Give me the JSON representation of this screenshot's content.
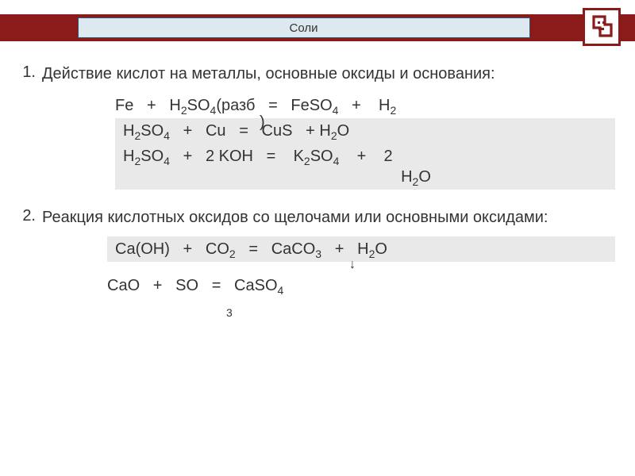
{
  "header": {
    "title": "Соли",
    "bar_color": "#8b1a1a",
    "title_box_bg": "#dde9ef",
    "title_box_border": "#2a5a7a"
  },
  "items": [
    {
      "num": "1.",
      "text": "Действие кислот на металлы, основные оксиды и основания:",
      "equations": [
        {
          "bg": "plain",
          "html": "Fe&nbsp;&nbsp;&nbsp;+&nbsp;&nbsp;&nbsp;H<sub>2</sub>SO<sub>4</sub>(разб&nbsp;&nbsp;&nbsp;=&nbsp;&nbsp;&nbsp;FeSO<sub>4</sub>&nbsp;&nbsp;&nbsp;+&nbsp;&nbsp;&nbsp;&nbsp;H<sub>2</sub>"
        },
        {
          "bg": "shade",
          "html": "H<sub>2</sub>SO<sub>4</sub>&nbsp;&nbsp;&nbsp;+&nbsp;&nbsp;&nbsp;Cu&nbsp;&nbsp;&nbsp;=&nbsp;&nbsp;&nbsp;CuS&nbsp;&nbsp;&nbsp;+&nbsp;H<sub>2</sub>O",
          "offset": "pad2"
        },
        {
          "bg": "shade",
          "html": "H<sub>2</sub>SO<sub>4</sub>&nbsp;&nbsp;&nbsp;+&nbsp;&nbsp;&nbsp;2 KOH&nbsp;&nbsp;&nbsp;=&nbsp;&nbsp;&nbsp;&nbsp;K<sub>2</sub>SO<sub>4</sub>&nbsp;&nbsp;&nbsp;&nbsp;+&nbsp;&nbsp;&nbsp;&nbsp;2<br>&nbsp;&nbsp;&nbsp;&nbsp;&nbsp;&nbsp;&nbsp;&nbsp;&nbsp;&nbsp;&nbsp;&nbsp;&nbsp;&nbsp;&nbsp;&nbsp;&nbsp;&nbsp;&nbsp;&nbsp;&nbsp;&nbsp;&nbsp;&nbsp;&nbsp;&nbsp;&nbsp;&nbsp;&nbsp;&nbsp;&nbsp;&nbsp;&nbsp;&nbsp;&nbsp;&nbsp;&nbsp;&nbsp;&nbsp;&nbsp;&nbsp;&nbsp;&nbsp;&nbsp;&nbsp;&nbsp;&nbsp;&nbsp;&nbsp;&nbsp;&nbsp;&nbsp;&nbsp;&nbsp;&nbsp;&nbsp;&nbsp;&nbsp;&nbsp;&nbsp;&nbsp;&nbsp;&nbsp;H<sub>2</sub>O",
          "offset": "pad2"
        }
      ]
    },
    {
      "num": "2.",
      "text": "Реакция кислотных оксидов со щелочами или основными оксидами:",
      "equations": [
        {
          "bg": "shade",
          "html": "Ca(OH)&nbsp;&nbsp;&nbsp;+&nbsp;&nbsp;&nbsp;CO<sub>2</sub>&nbsp;&nbsp;&nbsp;=&nbsp;&nbsp;&nbsp;CaCO<sub>3</sub>&nbsp;&nbsp;&nbsp;+&nbsp;&nbsp;&nbsp;H<sub>2</sub>O",
          "offset": "pad2"
        },
        {
          "bg": "plain",
          "html": "CaO&nbsp;&nbsp;&nbsp;+&nbsp;&nbsp;&nbsp;SO&nbsp;&nbsp;&nbsp;=&nbsp;&nbsp;&nbsp;CaSO<sub>4</sub>"
        }
      ]
    }
  ],
  "floats": {
    "dilute_close": ")",
    "arrow_down": "↓",
    "sub_3": "3"
  },
  "colors": {
    "text": "#333333",
    "shade_bg": "#e9e9e9"
  }
}
